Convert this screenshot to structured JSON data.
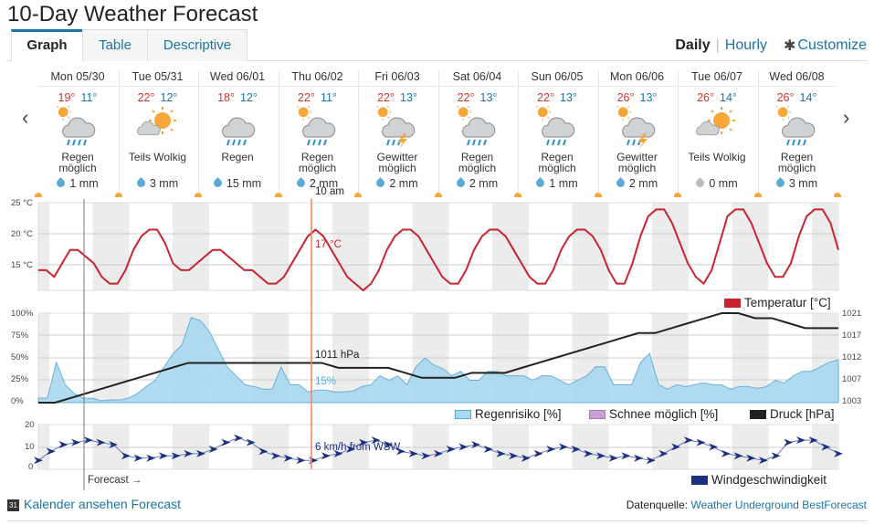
{
  "title": "10-Day Weather Forecast",
  "tabs": [
    {
      "label": "Graph",
      "active": true
    },
    {
      "label": "Table",
      "active": false
    },
    {
      "label": "Descriptive",
      "active": false
    }
  ],
  "modes": {
    "daily": "Daily",
    "hourly": "Hourly",
    "customize": "Customize"
  },
  "nav": {
    "prev": "‹",
    "next": "›"
  },
  "days": [
    {
      "date": "Mon 05/30",
      "hi": "19°",
      "lo": "11°",
      "icon": "partly-cloudy-rain-icon",
      "cond": [
        "Regen",
        "möglich"
      ],
      "precip": "1 mm"
    },
    {
      "date": "Tue 05/31",
      "hi": "22°",
      "lo": "12°",
      "icon": "sun-cloud-icon",
      "cond": [
        "Teils Wolkig",
        ""
      ],
      "precip": "3 mm"
    },
    {
      "date": "Wed 06/01",
      "hi": "18°",
      "lo": "12°",
      "icon": "rain-icon",
      "cond": [
        "Regen",
        ""
      ],
      "precip": "15 mm"
    },
    {
      "date": "Thu 06/02",
      "hi": "22°",
      "lo": "11°",
      "icon": "partly-cloudy-rain-icon",
      "cond": [
        "Regen",
        "möglich"
      ],
      "precip": "2 mm"
    },
    {
      "date": "Fri 06/03",
      "hi": "22°",
      "lo": "13°",
      "icon": "thunderstorm-icon",
      "cond": [
        "Gewitter",
        "möglich"
      ],
      "precip": "2 mm"
    },
    {
      "date": "Sat 06/04",
      "hi": "22°",
      "lo": "13°",
      "icon": "partly-cloudy-rain-icon",
      "cond": [
        "Regen",
        "möglich"
      ],
      "precip": "2 mm"
    },
    {
      "date": "Sun 06/05",
      "hi": "22°",
      "lo": "13°",
      "icon": "partly-cloudy-rain-icon",
      "cond": [
        "Regen",
        "möglich"
      ],
      "precip": "1 mm"
    },
    {
      "date": "Mon 06/06",
      "hi": "26°",
      "lo": "13°",
      "icon": "thunderstorm-icon",
      "cond": [
        "Gewitter",
        "möglich"
      ],
      "precip": "2 mm"
    },
    {
      "date": "Tue 06/07",
      "hi": "26°",
      "lo": "14°",
      "icon": "sun-cloud-icon",
      "cond": [
        "Teils Wolkig",
        ""
      ],
      "precip": "0 mm"
    },
    {
      "date": "Wed 06/08",
      "hi": "26°",
      "lo": "14°",
      "icon": "partly-cloudy-rain-icon",
      "cond": [
        "Regen",
        "möglich"
      ],
      "precip": "3 mm"
    }
  ],
  "cursor": {
    "time": "10 am",
    "temp": "17 °C",
    "pressure": "1011 hPa",
    "rain": "15%",
    "wind": "6 km/h from WSW"
  },
  "charts": {
    "temp_axis": [
      "25 °C",
      "20 °C",
      "15 °C"
    ],
    "pct_axis": [
      "100%",
      "75%",
      "50%",
      "25%",
      "0%"
    ],
    "press_axis": [
      "1021",
      "1017",
      "1012",
      "1007",
      "1003"
    ],
    "wind_axis": [
      "20",
      "10",
      "0"
    ],
    "forecast_label": "Forecast →"
  },
  "legend": {
    "temperature": "Temperatur [°C]",
    "rain": "Regenrisiko [%]",
    "snow": "Schnee möglich [%]",
    "pressure": "Druck [hPa]",
    "wind": "Windgeschwindigkeit"
  },
  "colors": {
    "temp": "#c9242e",
    "rain": "#a9d8ef",
    "snow": "#c9a0d6",
    "pressure": "#222222",
    "wind": "#1a2f80",
    "link": "#1a73a8"
  },
  "chart_data": [
    {
      "type": "line",
      "series": [
        {
          "name": "Temperatur [°C]",
          "values": [
            15,
            15,
            14,
            16,
            18,
            18,
            17,
            16,
            14,
            13,
            13,
            15,
            18,
            20,
            21,
            21,
            19,
            16,
            15,
            15,
            16,
            17,
            18,
            18,
            17,
            16,
            15,
            15,
            14,
            13,
            13,
            14,
            16,
            18,
            20,
            21,
            20,
            18,
            16,
            14,
            13,
            12,
            13,
            15,
            18,
            20,
            21,
            21,
            20,
            18,
            16,
            14,
            13,
            13,
            15,
            18,
            20,
            21,
            21,
            20,
            18,
            16,
            14,
            13,
            13,
            15,
            18,
            20,
            21,
            21,
            20,
            18,
            15,
            13,
            13,
            16,
            20,
            23,
            24,
            24,
            22,
            19,
            16,
            14,
            13,
            15,
            19,
            23,
            24,
            24,
            22,
            19,
            16,
            14,
            14,
            16,
            20,
            23,
            24,
            24,
            22,
            18
          ]
        }
      ],
      "ylim": [
        12,
        25
      ]
    },
    {
      "type": "area",
      "series": [
        {
          "name": "Regenrisiko [%]",
          "values": [
            5,
            5,
            45,
            20,
            10,
            5,
            5,
            2,
            3,
            3,
            5,
            10,
            18,
            25,
            40,
            55,
            65,
            95,
            92,
            80,
            60,
            40,
            30,
            20,
            18,
            15,
            15,
            40,
            20,
            20,
            12,
            14,
            14,
            12,
            12,
            13,
            18,
            20,
            30,
            25,
            30,
            20,
            40,
            50,
            42,
            38,
            30,
            35,
            25,
            25,
            35,
            35,
            30,
            30,
            30,
            25,
            30,
            30,
            25,
            20,
            25,
            30,
            40,
            40,
            20,
            20,
            20,
            45,
            55,
            20,
            15,
            20,
            18,
            20,
            22,
            20,
            20,
            15,
            18,
            18,
            16,
            18,
            25,
            22,
            30,
            35,
            35,
            40,
            45,
            48
          ]
        }
      ],
      "ylim": [
        0,
        100
      ]
    },
    {
      "type": "line",
      "series": [
        {
          "name": "Druck [hPa]",
          "values": [
            1003,
            1003,
            1004,
            1005,
            1006,
            1007,
            1008,
            1009,
            1010,
            1011,
            1011,
            1011,
            1011,
            1011,
            1011,
            1011,
            1011,
            1011,
            1010,
            1010,
            1010,
            1010,
            1009,
            1008,
            1008,
            1008,
            1009,
            1009,
            1009,
            1010,
            1011,
            1012,
            1013,
            1014,
            1015,
            1016,
            1017,
            1017,
            1018,
            1019,
            1020,
            1021,
            1021,
            1020,
            1020,
            1019,
            1018,
            1018,
            1018
          ]
        }
      ],
      "ylim": [
        1003,
        1021
      ]
    },
    {
      "type": "line",
      "series": [
        {
          "name": "Windgeschwindigkeit",
          "values": [
            4,
            8,
            11,
            12,
            13,
            12,
            11,
            6,
            5,
            5,
            6,
            6,
            7,
            7,
            9,
            12,
            14,
            12,
            8,
            6,
            5,
            4,
            4,
            6,
            7,
            9,
            12,
            13,
            11,
            8,
            7,
            6,
            7,
            9,
            10,
            11,
            9,
            7,
            6,
            5,
            7,
            9,
            10,
            9,
            7,
            6,
            5,
            6,
            5,
            4,
            7,
            10,
            13,
            12,
            10,
            7,
            6,
            5,
            4,
            6,
            12,
            13,
            13,
            10,
            7
          ]
        }
      ],
      "ylim": [
        0,
        20
      ]
    }
  ],
  "footer": {
    "calendar": "Kalender ansehen Forecast",
    "source_label": "Datenquelle:",
    "source_link": "Weather Underground BestForecast",
    "cal_glyph": "31"
  }
}
